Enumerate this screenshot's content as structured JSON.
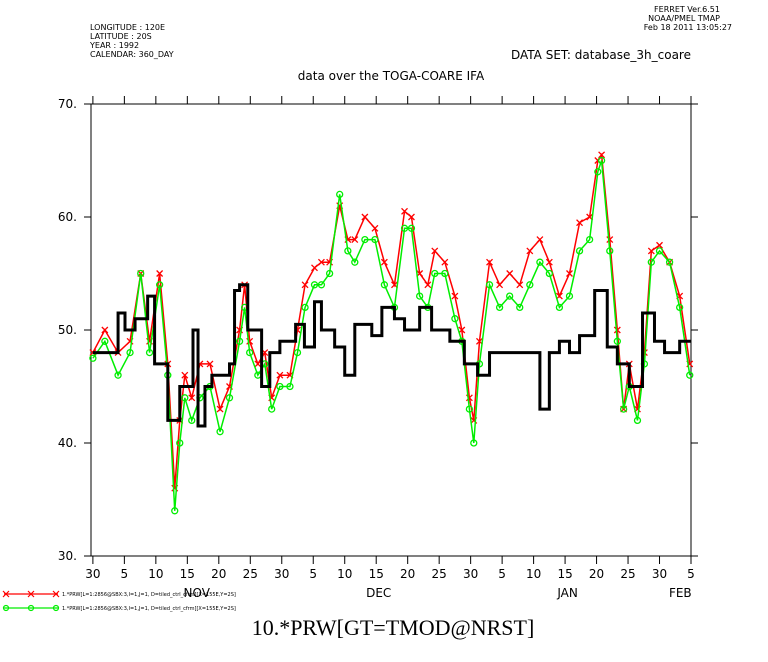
{
  "chart_data": {
    "type": "line",
    "title": "data over the TOGA-COARE IFA",
    "subtitle": "DATA SET: database_3h_coare",
    "x_label": "10.*PRW[GT=TMOD@NRST]",
    "header": [
      "LONGITUDE : 120E",
      "LATITUDE : 20S",
      "YEAR : 1992",
      "CALENDAR: 360_DAY"
    ],
    "stamp": [
      "FERRET  Ver.6.51",
      "NOAA/PMEL TMAP",
      "Feb 18 2011 13:05:27"
    ],
    "xlim": [
      -0.3,
      95
    ],
    "ylim": [
      30,
      70
    ],
    "yticks": [
      {
        "value": 30,
        "label": "30."
      },
      {
        "value": 40,
        "label": "40."
      },
      {
        "value": 50,
        "label": "50."
      },
      {
        "value": 60,
        "label": "60."
      },
      {
        "value": 70,
        "label": "70."
      }
    ],
    "xticks": [
      {
        "value": 0,
        "label": "30"
      },
      {
        "value": 5,
        "label": "5"
      },
      {
        "value": 10,
        "label": "10"
      },
      {
        "value": 15,
        "label": "15"
      },
      {
        "value": 20,
        "label": "20"
      },
      {
        "value": 25,
        "label": "25"
      },
      {
        "value": 30,
        "label": "30"
      },
      {
        "value": 35,
        "label": "5"
      },
      {
        "value": 40,
        "label": "10"
      },
      {
        "value": 45,
        "label": "15"
      },
      {
        "value": 50,
        "label": "20"
      },
      {
        "value": 55,
        "label": "25"
      },
      {
        "value": 60,
        "label": "30"
      },
      {
        "value": 65,
        "label": "5"
      },
      {
        "value": 70,
        "label": "10"
      },
      {
        "value": 75,
        "label": "15"
      },
      {
        "value": 80,
        "label": "20"
      },
      {
        "value": 85,
        "label": "25"
      },
      {
        "value": 90,
        "label": "30"
      },
      {
        "value": 95,
        "label": "5"
      }
    ],
    "month_labels": [
      {
        "value": 16.5,
        "label": "NOV"
      },
      {
        "value": 45.4,
        "label": "DEC"
      },
      {
        "value": 75.4,
        "label": "JAN"
      },
      {
        "value": 93.3,
        "label": "FEB"
      }
    ],
    "series": [
      {
        "color": "#000000",
        "style": "step",
        "x": [
          0,
          4,
          5.1,
          6.7,
          8.7,
          9.8,
          11.9,
          13.8,
          15.9,
          16.7,
          17.8,
          18.9,
          21.7,
          22.5,
          23.3,
          24.6,
          26.8,
          28.1,
          29.7,
          32.2,
          33.6,
          35.2,
          36.3,
          38.4,
          40,
          41.6,
          44.3,
          45.9,
          47.9,
          49.5,
          51.9,
          53.8,
          56.7,
          59,
          61.1,
          63,
          71,
          72.5,
          74.1,
          75.7,
          77.3,
          79.7,
          81.7,
          83.3,
          85.2,
          87.3,
          89.2,
          90.8,
          93.2
        ],
        "values": [
          48,
          51.5,
          50,
          51,
          53,
          47,
          42,
          45,
          50,
          41.5,
          45,
          46,
          47,
          53.5,
          54,
          50,
          45,
          48,
          49,
          50.5,
          48.5,
          52.5,
          50,
          48.5,
          46,
          50.5,
          49.5,
          52,
          51,
          50,
          52,
          50,
          49,
          47,
          46,
          48,
          43,
          48,
          49,
          48,
          49.5,
          53.5,
          48.5,
          47,
          45,
          51.5,
          49,
          48,
          49
        ]
      },
      {
        "name": "1.*PRW[L=1:2856@SBX:3,I=1,J=1, D=tiled_ctrl_cfrm][X=155E,Y=2S]",
        "color": "#ff0000",
        "marker": "x",
        "x": [
          0,
          1.9,
          4,
          5.9,
          7.6,
          9,
          10.6,
          11.9,
          13,
          13.8,
          14.6,
          15.7,
          17,
          18.6,
          20.2,
          21.7,
          23.3,
          24.1,
          24.9,
          26.2,
          27.3,
          28.4,
          29.7,
          31.3,
          32.5,
          33.7,
          35.2,
          36.3,
          37.6,
          39.2,
          40.5,
          41.6,
          43.2,
          44.8,
          46.3,
          47.9,
          49.5,
          50.6,
          51.9,
          53.2,
          54.3,
          55.9,
          57.5,
          58.6,
          59.8,
          60.5,
          61.4,
          63,
          64.6,
          66.2,
          67.8,
          69.4,
          71,
          72.5,
          74.1,
          75.7,
          77.3,
          78.9,
          80.2,
          80.8,
          82.1,
          83.3,
          84.3,
          85.2,
          86.5,
          87.6,
          88.7,
          90,
          91.6,
          93.2,
          94.8
        ],
        "values": [
          48,
          50,
          48,
          49,
          55,
          49,
          55,
          47,
          36,
          42,
          46,
          44,
          47,
          47,
          43,
          45,
          50,
          54,
          49,
          47,
          48,
          44,
          46,
          46,
          50,
          54,
          55.5,
          56,
          56,
          61,
          58,
          58,
          60,
          59,
          56,
          54,
          60.5,
          60,
          55,
          54,
          57,
          56,
          53,
          50,
          44,
          42,
          49,
          56,
          54,
          55,
          54,
          57,
          58,
          56,
          53,
          55,
          59.5,
          60,
          65,
          65.5,
          58,
          50,
          43,
          47,
          43,
          48,
          57,
          57.5,
          56,
          53,
          47
        ]
      },
      {
        "name": "1.*PRW[L=1:2856@SBX:3,I=1,J=1, D=tiled_ctrl_cfrm][X=155E,Y=2S]",
        "color": "#00ee00",
        "marker": "circle",
        "x": [
          0,
          1.9,
          4,
          5.9,
          7.6,
          9,
          10.6,
          11.9,
          13,
          13.8,
          14.6,
          15.7,
          17,
          18.6,
          20.2,
          21.7,
          23.3,
          24.1,
          24.9,
          26.2,
          27.3,
          28.4,
          29.7,
          31.3,
          32.5,
          33.7,
          35.2,
          36.3,
          37.6,
          39.2,
          40.5,
          41.6,
          43.2,
          44.8,
          46.3,
          47.9,
          49.5,
          50.6,
          51.9,
          53.2,
          54.3,
          55.9,
          57.5,
          58.6,
          59.8,
          60.5,
          61.4,
          63,
          64.6,
          66.2,
          67.8,
          69.4,
          71,
          72.5,
          74.1,
          75.7,
          77.3,
          78.9,
          80.2,
          80.8,
          82.1,
          83.3,
          84.3,
          85.2,
          86.5,
          87.6,
          88.7,
          90,
          91.6,
          93.2,
          94.8
        ],
        "values": [
          47.5,
          49,
          46,
          48,
          55,
          48,
          54,
          46,
          34,
          40,
          44,
          42,
          44,
          45,
          41,
          44,
          49,
          52,
          48,
          46,
          47,
          43,
          45,
          45,
          48,
          52,
          54,
          54,
          55,
          62,
          57,
          56,
          58,
          58,
          54,
          52,
          59,
          59,
          53,
          52,
          55,
          55,
          51,
          49,
          43,
          40,
          47,
          54,
          52,
          53,
          52,
          54,
          56,
          55,
          52,
          53,
          57,
          58,
          64,
          65,
          57,
          49,
          43,
          45,
          42,
          47,
          56,
          57,
          56,
          52,
          46
        ]
      }
    ]
  }
}
